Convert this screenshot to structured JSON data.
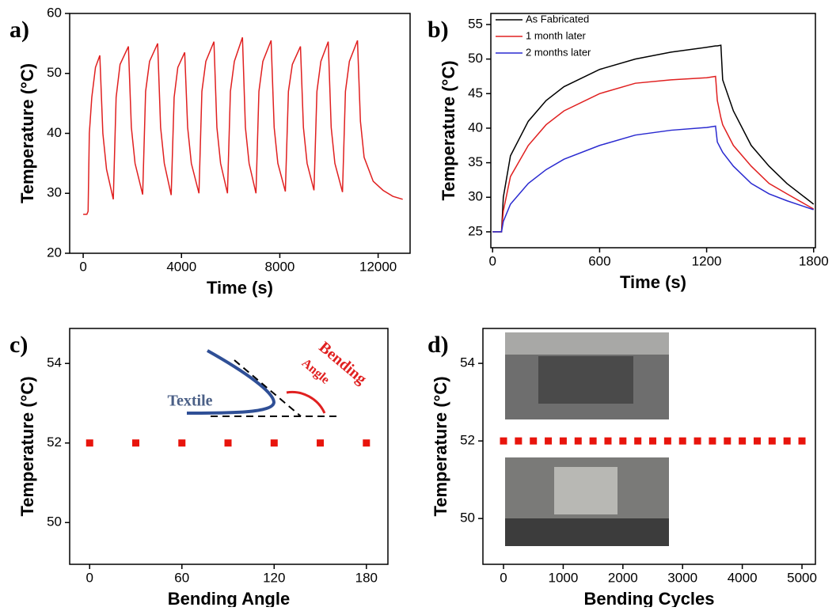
{
  "chart_data": [
    {
      "type": "line",
      "panel_label": "a)",
      "x_label": "Time (s)",
      "y_label": "Temperature (°C)",
      "color": "#e02020",
      "x": [
        0,
        150,
        200,
        250,
        350,
        500,
        677,
        800,
        950,
        1225,
        1340,
        1500,
        1840,
        1960,
        2110,
        2420,
        2540,
        2700,
        3030,
        3150,
        3300,
        3580,
        3700,
        3850,
        4130,
        4250,
        4400,
        4710,
        4830,
        4990,
        5320,
        5440,
        5590,
        5870,
        5990,
        6150,
        6480,
        6600,
        6750,
        7030,
        7150,
        7310,
        7645,
        7770,
        7920,
        8225,
        8350,
        8510,
        8840,
        8960,
        9110,
        9390,
        9510,
        9670,
        9970,
        10090,
        10240,
        10550,
        10670,
        10830,
        11160,
        11280,
        11430,
        11800,
        12200,
        12600,
        13000
      ],
      "values": [
        26.5,
        26.5,
        27,
        40,
        46,
        51,
        53,
        40,
        34,
        29,
        46,
        51.5,
        54.5,
        41,
        35,
        29.8,
        47,
        52,
        55,
        41,
        35,
        29.7,
        46,
        51,
        53.5,
        41,
        35,
        30,
        47,
        52,
        55.3,
        41,
        35,
        30,
        47,
        52,
        56,
        41,
        35,
        30,
        47,
        52,
        55.5,
        41,
        35,
        30.3,
        47,
        51.5,
        54.5,
        41,
        35,
        30.5,
        47,
        52,
        55.3,
        41,
        35,
        30.2,
        47,
        52,
        55.5,
        42,
        36,
        32,
        30.5,
        29.5,
        29
      ],
      "xlim": [
        -550,
        13300
      ],
      "ylim": [
        20,
        60
      ],
      "xticks": [
        0,
        4000,
        8000,
        12000
      ],
      "yticks": [
        20,
        30,
        40,
        50,
        60
      ]
    },
    {
      "type": "line",
      "panel_label": "b)",
      "x_label": "Time (s)",
      "y_label": "Temperature (°C)",
      "x": [
        0,
        50,
        60,
        100,
        200,
        300,
        400,
        600,
        800,
        1000,
        1200,
        1250,
        1260,
        1280,
        1290,
        1350,
        1450,
        1550,
        1650,
        1800
      ],
      "series": [
        {
          "name": "As Fabricated",
          "color": "#000000",
          "values": [
            25,
            25,
            30,
            36,
            41,
            44,
            46,
            48.5,
            50,
            51,
            51.7,
            51.9,
            51.9,
            52,
            47,
            42.5,
            37.5,
            34.5,
            32,
            29
          ]
        },
        {
          "name": "1 month later",
          "color": "#e02020",
          "values": [
            25,
            25,
            28,
            33,
            37.5,
            40.5,
            42.5,
            45,
            46.5,
            47,
            47.3,
            47.5,
            44,
            41.5,
            40.5,
            37.5,
            34.5,
            32,
            30.5,
            28.3
          ]
        },
        {
          "name": "2 months later",
          "color": "#2a2ad0",
          "values": [
            25,
            25,
            26.5,
            29,
            32,
            34,
            35.5,
            37.5,
            39,
            39.7,
            40.1,
            40.3,
            38,
            37,
            36.5,
            34.5,
            32,
            30.5,
            29.5,
            28.2
          ]
        }
      ],
      "xlim": [
        -10,
        1810
      ],
      "ylim": [
        22.7,
        56.6
      ],
      "xticks": [
        0,
        600,
        1200,
        1800
      ],
      "yticks": [
        25,
        30,
        35,
        40,
        45,
        50,
        55
      ]
    },
    {
      "type": "scatter",
      "panel_label": "c)",
      "x_label": "Bending Angle",
      "y_label": "Temperature (°C)",
      "color": "#e8140c",
      "x": [
        0,
        30,
        60,
        90,
        120,
        150,
        180
      ],
      "values": [
        52,
        52,
        52,
        52,
        52,
        52,
        52
      ],
      "xlim": [
        -13,
        194
      ],
      "ylim": [
        48.95,
        54.88
      ],
      "xticks": [
        0,
        60,
        120,
        180
      ],
      "yticks": [
        50,
        52,
        54
      ],
      "annotations": [
        "Textile",
        "Bending",
        "Angle"
      ]
    },
    {
      "type": "scatter",
      "panel_label": "d)",
      "x_label": "Bending Cycles",
      "y_label": "Temperature (°C)",
      "color": "#e8140c",
      "x": [
        0,
        250,
        500,
        750,
        1000,
        1250,
        1500,
        1750,
        2000,
        2250,
        2500,
        2750,
        3000,
        3250,
        3500,
        3750,
        4000,
        4250,
        4500,
        4750,
        5000
      ],
      "values": [
        52,
        52,
        52,
        52,
        52,
        52,
        52,
        52,
        52,
        52,
        52,
        52,
        52,
        52,
        52,
        52,
        52,
        52,
        52,
        52,
        52
      ],
      "xlim": [
        -345,
        5225
      ],
      "ylim": [
        48.82,
        54.9
      ],
      "xticks": [
        0,
        1000,
        2000,
        3000,
        4000,
        5000
      ],
      "yticks": [
        50,
        52,
        54
      ]
    }
  ]
}
